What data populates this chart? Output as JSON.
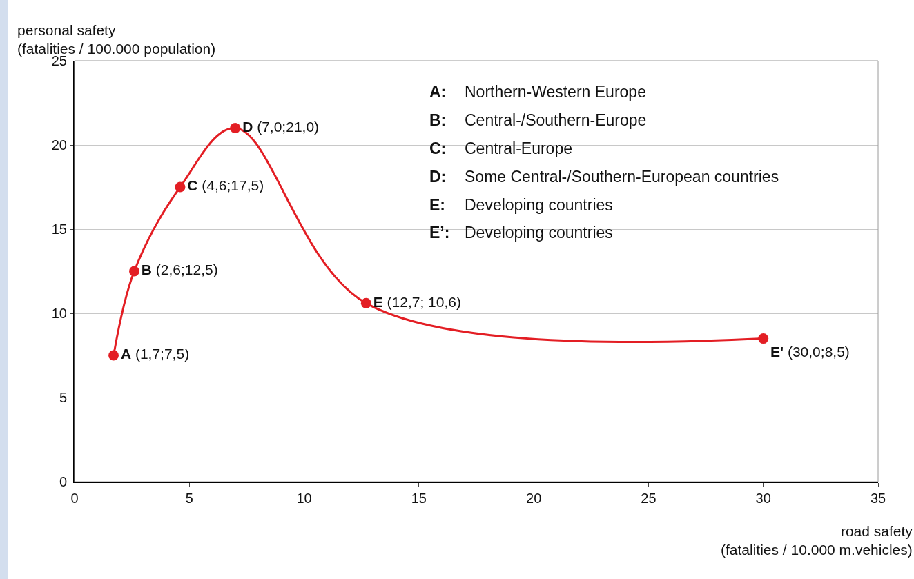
{
  "chart_data": {
    "type": "line",
    "xlabel": "road safety\n(fatalities / 10.000 m.vehicles)",
    "ylabel": "personal safety\n(fatalities / 100.000 population)",
    "x": [
      1.7,
      2.6,
      4.6,
      7.0,
      12.7,
      30.0
    ],
    "series": [
      {
        "color": "#e31e24",
        "values": [
          7.5,
          12.5,
          17.5,
          21.0,
          10.6,
          8.5
        ]
      }
    ],
    "value_labels": [
      "A (1,7;7,5)",
      "B (2,6;12,5)",
      "C (4,6;17,5)",
      "D (7,0;21,0)",
      "E (12,7; 10,6)",
      "E' (30,0;8,5)"
    ],
    "annotations": [
      "A: Northern-Western Europe",
      "B: Central-/Southern-Europe",
      "C: Central-Europe",
      "D: Some Central-/Southern-European countries",
      "E: Developing countries",
      "E’: Developing countries"
    ],
    "xlim": [
      0,
      35
    ],
    "xticks": [
      0,
      5,
      10,
      15,
      20,
      25,
      30,
      35
    ],
    "ylim": [
      0,
      25
    ],
    "yticks": [
      0,
      5,
      10,
      15,
      20,
      25
    ],
    "grid": "y",
    "marker": "circle",
    "line_style": "solid"
  }
}
